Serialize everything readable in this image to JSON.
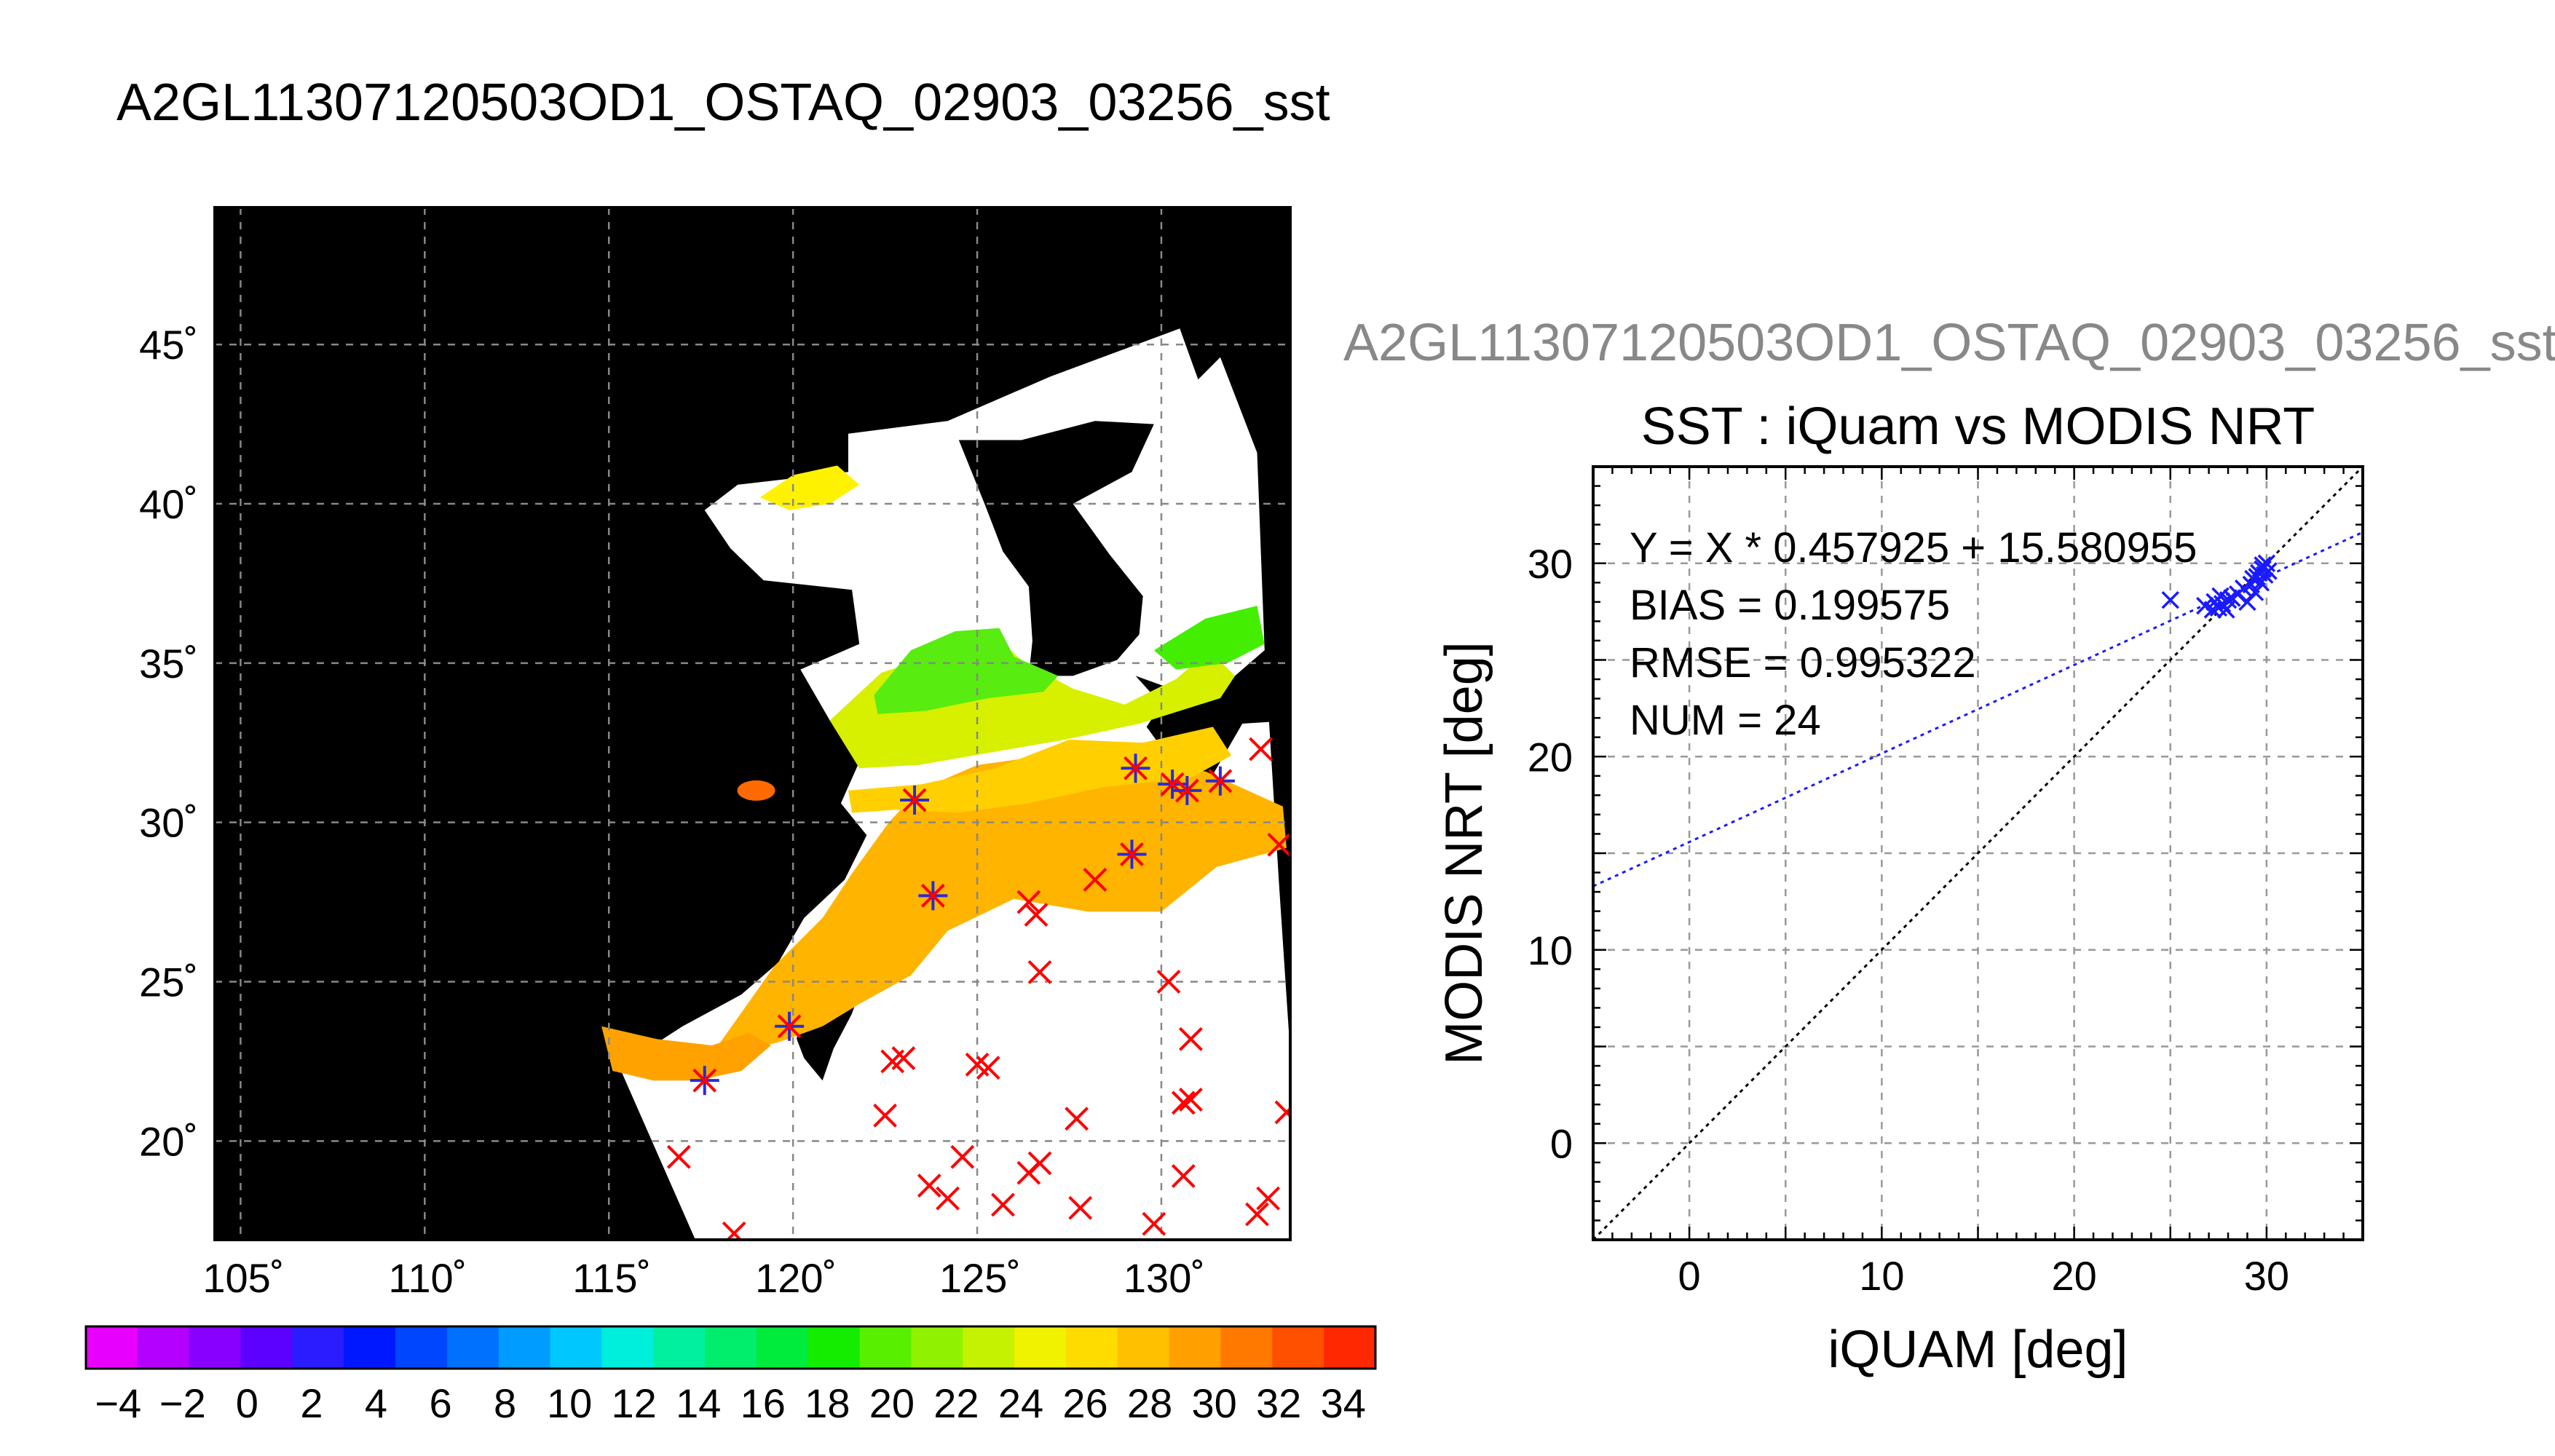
{
  "header": {
    "file_title": "A2GL11307120503OD1_OSTAQ_02903_03256_sst",
    "scatter_file_title": "A2GL11307120503OD1_OSTAQ_02903_03256_sst"
  },
  "chart_data": [
    {
      "type": "heatmap",
      "map": {
        "lon_ticks": [
          "105˚",
          "110˚",
          "115˚",
          "120˚",
          "125˚",
          "130˚"
        ],
        "lat_ticks": [
          "20˚",
          "25˚",
          "30˚",
          "35˚",
          "40˚",
          "45˚"
        ],
        "lon_values": [
          105,
          110,
          115,
          120,
          125,
          130
        ],
        "lat_values": [
          20,
          25,
          30,
          35,
          40,
          45
        ],
        "lon_range": [
          104.3,
          133.5
        ],
        "lat_range": [
          16.9,
          49.3
        ],
        "grid": true,
        "background_color": "#000000",
        "no_data_color": "#ffffff",
        "matched_marker_color": "#2b2bd6",
        "unmatched_marker_color": "#ff0000",
        "matched_points": [
          [
            123.3,
            30.7
          ],
          [
            123.8,
            27.7
          ],
          [
            117.6,
            21.9
          ],
          [
            119.9,
            23.6
          ],
          [
            129.2,
            29.0
          ],
          [
            129.3,
            31.7
          ],
          [
            130.3,
            31.2
          ],
          [
            130.7,
            31.0
          ],
          [
            131.6,
            31.3
          ]
        ],
        "unmatched_points": [
          [
            132.7,
            32.3
          ],
          [
            133.2,
            29.3
          ],
          [
            128.2,
            28.2
          ],
          [
            126.4,
            27.5
          ],
          [
            126.6,
            27.1
          ],
          [
            126.7,
            25.3
          ],
          [
            130.2,
            25.0
          ],
          [
            130.8,
            23.2
          ],
          [
            122.7,
            22.5
          ],
          [
            123.0,
            22.6
          ],
          [
            125.0,
            22.4
          ],
          [
            125.3,
            22.3
          ],
          [
            122.5,
            20.8
          ],
          [
            127.7,
            20.7
          ],
          [
            130.6,
            21.2
          ],
          [
            130.8,
            21.3
          ],
          [
            133.4,
            20.9
          ],
          [
            116.9,
            19.5
          ],
          [
            124.6,
            19.5
          ],
          [
            126.7,
            19.3
          ],
          [
            126.4,
            19.0
          ],
          [
            130.6,
            18.9
          ],
          [
            123.7,
            18.6
          ],
          [
            124.2,
            18.2
          ],
          [
            125.7,
            18.0
          ],
          [
            127.8,
            17.9
          ],
          [
            129.8,
            17.4
          ],
          [
            132.9,
            18.2
          ],
          [
            132.6,
            17.7
          ],
          [
            118.4,
            17.1
          ]
        ]
      },
      "colorbar": {
        "tick_labels": [
          "−4",
          "−2",
          "0",
          "2",
          "4",
          "6",
          "8",
          "10",
          "12",
          "14",
          "16",
          "18",
          "20",
          "22",
          "24",
          "26",
          "28",
          "30",
          "32",
          "34"
        ],
        "range": [
          -5,
          35
        ],
        "colors": [
          "#e800ff",
          "#b400ff",
          "#8800ff",
          "#5c00ff",
          "#2a1cff",
          "#0018ff",
          "#0046ff",
          "#0070ff",
          "#009cff",
          "#00c8ff",
          "#00eedc",
          "#00f0a0",
          "#00ee6c",
          "#00ec3c",
          "#14ec00",
          "#58f000",
          "#90f200",
          "#c4f200",
          "#f0f200",
          "#ffdc00",
          "#ffc000",
          "#ffa000",
          "#ff7800",
          "#ff5000",
          "#ff2800"
        ]
      }
    },
    {
      "type": "scatter",
      "title": "SST : iQuam vs MODIS NRT",
      "xlabel": "iQUAM [deg]",
      "ylabel": "MODIS NRT [deg]",
      "xlim": [
        -5,
        35
      ],
      "ylim": [
        -5,
        35
      ],
      "x_ticks": [
        0,
        10,
        20,
        30
      ],
      "y_ticks": [
        0,
        10,
        20,
        30
      ],
      "grid": true,
      "annotations": [
        "Y = X * 0.457925 + 15.580955",
        "BIAS = 0.199575",
        "RMSE = 0.995322",
        "NUM = 24"
      ],
      "fit": {
        "slope": 0.457925,
        "intercept": 15.580955,
        "color": "#1a1aff"
      },
      "one_to_one_color": "#000000",
      "marker_color": "#1a1aff",
      "points": [
        [
          25.0,
          28.1
        ],
        [
          26.8,
          27.8
        ],
        [
          27.2,
          27.6
        ],
        [
          27.3,
          28.0
        ],
        [
          27.5,
          27.7
        ],
        [
          27.6,
          28.3
        ],
        [
          27.7,
          27.9
        ],
        [
          27.9,
          27.6
        ],
        [
          28.0,
          28.1
        ],
        [
          28.2,
          28.2
        ],
        [
          28.5,
          28.4
        ],
        [
          28.8,
          28.7
        ],
        [
          29.0,
          28.0
        ],
        [
          29.2,
          28.9
        ],
        [
          29.3,
          29.2
        ],
        [
          29.4,
          28.5
        ],
        [
          29.5,
          29.3
        ],
        [
          29.6,
          29.5
        ],
        [
          29.7,
          29.0
        ],
        [
          29.8,
          29.7
        ],
        [
          29.9,
          29.4
        ],
        [
          30.0,
          30.0
        ],
        [
          29.8,
          29.9
        ],
        [
          30.1,
          29.6
        ]
      ]
    }
  ]
}
